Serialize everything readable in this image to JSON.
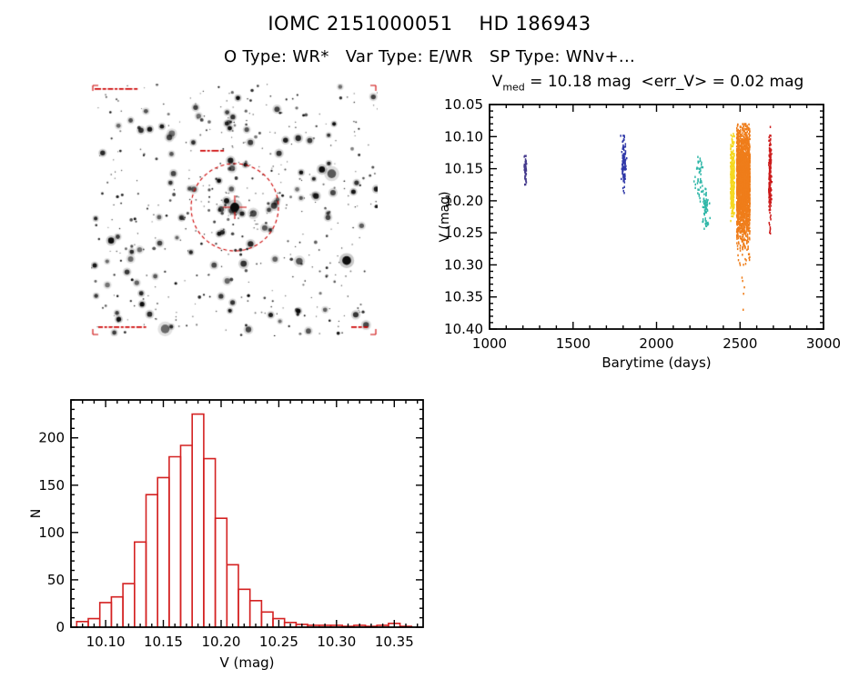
{
  "page": {
    "title": "IOMC 2151000051    HD 186943",
    "subtitle": "O Type: WR*   Var Type: E/WR   SP Type: WNv+..."
  },
  "lightcurve_title": {
    "v": "V",
    "sub": "med",
    "rest": " = 10.18 mag  <err_V> = 0.02 mag"
  },
  "finder_chart": {
    "marker_color": "#cc0000",
    "target_circle": true
  },
  "chart_data": [
    {
      "id": "lightcurve",
      "type": "scatter",
      "title": "V_med = 10.18 mag <err_V> = 0.02 mag",
      "xlabel": "Barytime (days)",
      "ylabel": "V (mag)",
      "xlim": [
        1000,
        3000
      ],
      "ylim": [
        10.05,
        10.4
      ],
      "y_inverted": true,
      "xticks": [
        1000,
        1500,
        2000,
        2500,
        3000
      ],
      "yticks": [
        10.05,
        10.1,
        10.15,
        10.2,
        10.25,
        10.3,
        10.35,
        10.4
      ],
      "x_minor_step": 100,
      "y_minor_step": 0.01,
      "clusters": [
        {
          "name": "epoch-1",
          "x": 1215,
          "x_spread": 4,
          "v_center": 10.15,
          "v_spread": 0.013,
          "v_min": 10.125,
          "v_max": 10.175,
          "n": 45,
          "color": "#453a8c"
        },
        {
          "name": "epoch-2",
          "x": 1805,
          "x_spread": 6,
          "v_center": 10.145,
          "v_spread": 0.022,
          "v_min": 10.095,
          "v_max": 10.195,
          "n": 120,
          "color": "#3039a8"
        },
        {
          "name": "epoch-3a",
          "x": 2255,
          "x_spread": 12,
          "v_center": 10.16,
          "v_spread": 0.02,
          "v_min": 10.125,
          "v_max": 10.205,
          "n": 42,
          "color": "#30b7a8"
        },
        {
          "name": "epoch-3b",
          "x": 2295,
          "x_spread": 10,
          "v_center": 10.215,
          "v_spread": 0.018,
          "v_min": 10.175,
          "v_max": 10.245,
          "n": 68,
          "color": "#30b7a8"
        },
        {
          "name": "epoch-4",
          "x": 2455,
          "x_halfwidth": 12,
          "v_center": 10.165,
          "v_spread": 0.035,
          "v_min": 10.095,
          "v_max": 10.235,
          "n": 280,
          "color": "#f5d820"
        },
        {
          "name": "epoch-5",
          "x": 2520,
          "x_halfwidth": 40,
          "v_center": 10.17,
          "v_spread": 0.045,
          "v_min": 10.08,
          "v_max": 10.31,
          "n": 2300,
          "color": "#ef7d1a",
          "outliers": [
            [
              2516,
              10.325
            ],
            [
              2521,
              10.345
            ],
            [
              2519,
              10.37
            ],
            [
              2526,
              10.335
            ],
            [
              2512,
              10.32
            ]
          ]
        },
        {
          "name": "epoch-6",
          "x": 2680,
          "x_spread": 4,
          "v_center": 10.165,
          "v_spread": 0.035,
          "v_min": 10.085,
          "v_max": 10.255,
          "n": 190,
          "color": "#cc1b1b"
        }
      ]
    },
    {
      "id": "histogram",
      "type": "bar",
      "xlabel": "V (mag)",
      "ylabel": "N",
      "xlim": [
        10.07,
        10.375
      ],
      "ylim": [
        0,
        240
      ],
      "bin_start": 10.075,
      "bin_width": 0.01,
      "values": [
        6,
        9,
        26,
        32,
        46,
        90,
        140,
        158,
        180,
        192,
        225,
        178,
        115,
        66,
        40,
        28,
        16,
        9,
        5,
        3,
        2,
        2,
        2,
        1,
        2,
        1,
        2,
        4,
        1
      ],
      "xticks": [
        10.1,
        10.15,
        10.2,
        10.25,
        10.3,
        10.35
      ],
      "yticks": [
        0,
        50,
        100,
        150,
        200
      ],
      "x_minor_step": 0.01,
      "y_minor_step": 10,
      "color": "#d42222"
    }
  ]
}
